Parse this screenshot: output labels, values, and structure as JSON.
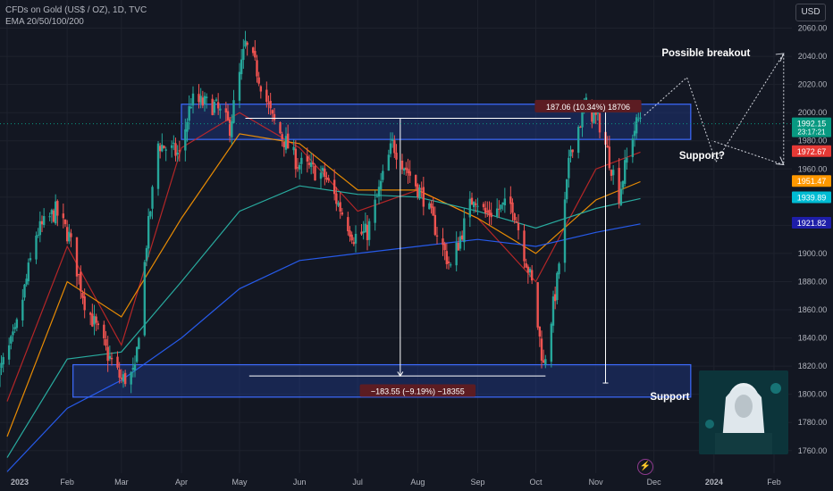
{
  "header": {
    "symbol_line": "CFDs on Gold (US$ / OZ), 1D, TVC",
    "indicator_line": "EMA 20/50/100/200"
  },
  "toolbar": {
    "currency": "USD"
  },
  "colors": {
    "background": "#131722",
    "candle_up": "#26a69a",
    "candle_down": "#ef5350",
    "ema20": "#c62828",
    "ema50": "#ff9800",
    "ema100": "#2bbbad",
    "ema200": "#2962ff",
    "zone_fill": "#1f3a8a",
    "zone_border": "#3d6bff"
  },
  "chart_data": {
    "type": "candlestick",
    "title": "",
    "yscale": "linear",
    "ylim": [
      1744,
      2080
    ],
    "yticks": [
      1760,
      1780,
      1800,
      1820,
      1840,
      1860,
      1880,
      1900,
      1920,
      1940,
      1960,
      1980,
      2000,
      2020,
      2040,
      2060
    ],
    "x_labels": [
      "2023",
      "Feb",
      "Mar",
      "Apr",
      "May",
      "Jun",
      "Jul",
      "Aug",
      "Sep",
      "Oct",
      "Nov",
      "Dec",
      "2024",
      "Feb"
    ],
    "x_label_dates": [
      "2023-01-01",
      "2023-02-01",
      "2023-03-01",
      "2023-04-01",
      "2023-05-01",
      "2023-06-01",
      "2023-07-01",
      "2023-08-01",
      "2023-09-01",
      "2023-10-01",
      "2023-11-01",
      "2023-12-01",
      "2024-01-01",
      "2024-02-01"
    ],
    "close_anchors": [
      [
        "2022-12-27",
        1812
      ],
      [
        "2023-01-05",
        1842
      ],
      [
        "2023-01-16",
        1914
      ],
      [
        "2023-01-26",
        1930
      ],
      [
        "2023-02-02",
        1912
      ],
      [
        "2023-02-10",
        1866
      ],
      [
        "2023-02-22",
        1828
      ],
      [
        "2023-03-01",
        1810
      ],
      [
        "2023-03-08",
        1815
      ],
      [
        "2023-03-14",
        1908
      ],
      [
        "2023-03-20",
        1978
      ],
      [
        "2023-03-31",
        1970
      ],
      [
        "2023-04-06",
        2008
      ],
      [
        "2023-04-18",
        2005
      ],
      [
        "2023-04-26",
        1990
      ],
      [
        "2023-05-04",
        2048
      ],
      [
        "2023-05-10",
        2030
      ],
      [
        "2023-05-18",
        1995
      ],
      [
        "2023-05-31",
        1964
      ],
      [
        "2023-06-14",
        1955
      ],
      [
        "2023-06-29",
        1912
      ],
      [
        "2023-07-06",
        1915
      ],
      [
        "2023-07-19",
        1978
      ],
      [
        "2023-07-27",
        1958
      ],
      [
        "2023-08-04",
        1940
      ],
      [
        "2023-08-18",
        1890
      ],
      [
        "2023-08-30",
        1942
      ],
      [
        "2023-09-05",
        1928
      ],
      [
        "2023-09-19",
        1935
      ],
      [
        "2023-09-29",
        1878
      ],
      [
        "2023-10-05",
        1820
      ],
      [
        "2023-10-12",
        1880
      ],
      [
        "2023-10-19",
        1975
      ],
      [
        "2023-10-27",
        2005
      ],
      [
        "2023-11-03",
        1992
      ],
      [
        "2023-11-13",
        1942
      ],
      [
        "2023-11-20",
        1985
      ],
      [
        "2023-11-24",
        1998
      ]
    ],
    "ema_series": [
      {
        "name": "EMA 20",
        "values": [
          [
            "2023-01-01",
            1795
          ],
          [
            "2023-02-01",
            1905
          ],
          [
            "2023-03-01",
            1835
          ],
          [
            "2023-04-01",
            1975
          ],
          [
            "2023-05-01",
            2000
          ],
          [
            "2023-06-01",
            1975
          ],
          [
            "2023-07-01",
            1930
          ],
          [
            "2023-08-01",
            1945
          ],
          [
            "2023-09-01",
            1925
          ],
          [
            "2023-10-01",
            1880
          ],
          [
            "2023-11-01",
            1960
          ],
          [
            "2023-11-24",
            1972
          ]
        ]
      },
      {
        "name": "EMA 50",
        "values": [
          [
            "2023-01-01",
            1770
          ],
          [
            "2023-02-01",
            1880
          ],
          [
            "2023-03-01",
            1855
          ],
          [
            "2023-04-01",
            1925
          ],
          [
            "2023-05-01",
            1985
          ],
          [
            "2023-06-01",
            1978
          ],
          [
            "2023-07-01",
            1945
          ],
          [
            "2023-08-01",
            1945
          ],
          [
            "2023-09-01",
            1925
          ],
          [
            "2023-10-01",
            1900
          ],
          [
            "2023-11-01",
            1938
          ],
          [
            "2023-11-24",
            1951
          ]
        ]
      },
      {
        "name": "EMA 100",
        "values": [
          [
            "2023-01-01",
            1755
          ],
          [
            "2023-02-01",
            1825
          ],
          [
            "2023-03-01",
            1830
          ],
          [
            "2023-04-01",
            1880
          ],
          [
            "2023-05-01",
            1930
          ],
          [
            "2023-06-01",
            1948
          ],
          [
            "2023-07-01",
            1942
          ],
          [
            "2023-08-01",
            1940
          ],
          [
            "2023-09-01",
            1930
          ],
          [
            "2023-10-01",
            1918
          ],
          [
            "2023-11-01",
            1932
          ],
          [
            "2023-11-24",
            1939
          ]
        ]
      },
      {
        "name": "EMA 200",
        "values": [
          [
            "2023-01-01",
            1745
          ],
          [
            "2023-02-01",
            1790
          ],
          [
            "2023-03-01",
            1810
          ],
          [
            "2023-04-01",
            1840
          ],
          [
            "2023-05-01",
            1875
          ],
          [
            "2023-06-01",
            1895
          ],
          [
            "2023-07-01",
            1900
          ],
          [
            "2023-08-01",
            1905
          ],
          [
            "2023-09-01",
            1910
          ],
          [
            "2023-10-01",
            1905
          ],
          [
            "2023-11-01",
            1915
          ],
          [
            "2023-11-24",
            1921
          ]
        ]
      }
    ],
    "price_badges": [
      {
        "label": "1992.15",
        "sub": "23:17:21",
        "value": 1992.15,
        "color": "#089981"
      },
      {
        "label": "1972.67",
        "value": 1972.67,
        "color": "#e53935"
      },
      {
        "label": "1951.47",
        "value": 1951.47,
        "color": "#ff9800"
      },
      {
        "label": "1939.89",
        "value": 1939.89,
        "color": "#00bcd4"
      },
      {
        "label": "1921.82",
        "value": 1921.82,
        "color": "#1e1ea8"
      }
    ],
    "zones": [
      {
        "name": "resistance-zone",
        "from_date": "2023-04-01",
        "to_date": "2023-12-20",
        "low": 1981,
        "high": 2006
      },
      {
        "name": "support-zone",
        "from_date": "2023-02-04",
        "to_date": "2023-12-20",
        "low": 1798,
        "high": 1821
      }
    ],
    "measures": [
      {
        "label": "187.06 (10.34%) 18706",
        "from_date": "2023-10-05",
        "to_date": "2023-11-06",
        "from_value": 1808,
        "to_value": 1995
      },
      {
        "label": "−183.55 (−9.19%) −18355",
        "from_date": "2023-05-06",
        "to_date": "2023-10-06",
        "from_value": 1996,
        "to_value": 1813
      }
    ],
    "annotations": [
      {
        "text": "Possible breakout",
        "date": "2023-12-05",
        "value": 2040
      },
      {
        "text": "Support?",
        "date": "2023-12-14",
        "value": 1967
      },
      {
        "text": "Support",
        "date": "2023-11-29",
        "value": 1796
      }
    ],
    "projection_path": [
      [
        "2023-11-26",
        1998
      ],
      [
        "2023-12-18",
        2025
      ],
      [
        "2024-01-02",
        1965
      ],
      [
        "2024-02-06",
        2042
      ],
      [
        "2024-02-06",
        1963
      ],
      [
        "2023-12-31",
        1980
      ]
    ]
  }
}
